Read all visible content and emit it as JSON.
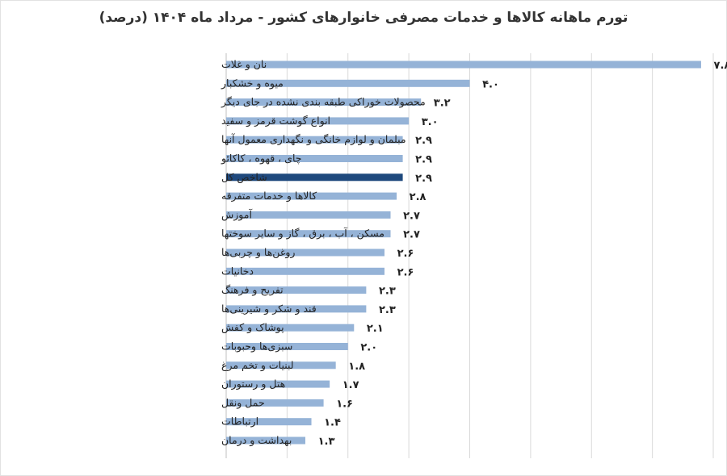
{
  "chart_data": {
    "type": "bar",
    "orientation": "horizontal",
    "title": "تورم ماهانه کالاها و خدمات مصرفی خانوارهای کشور - مرداد ماه ۱۴۰۴ (درصد)",
    "xlabel": "",
    "ylabel": "",
    "xlim": [
      0,
      8
    ],
    "grid": true,
    "legend": "none",
    "colors": {
      "bar": "#95b3d7",
      "highlight": "#1f497d",
      "grid": "#d9d9d9",
      "axis": "#bfbfbf"
    },
    "highlight_category": "شاخص کل",
    "categories": [
      "نان و غلات",
      "میوه و خشکبار",
      "محصولات خوراکی طبقه بندی نشده در جای دیگر",
      "انواع گوشت قرمز و سفید",
      "مبلمان و لوازم خانگی و نگهداری معمول آنها",
      "چای ، قهوه ، کاکائو",
      "شاخص کل",
      "کالاها و خدمات متفرقه",
      "آموزش",
      "مسکن ، آب ، برق ، گاز و سایر سوختها",
      "روغن‌ها و چربی‌ها",
      "دخانیات",
      "تفریح و فرهنگ",
      "قند و شکر و شیرینی‌ها",
      "پوشاک و کفش",
      "سبزی‌ها وحبوبات",
      "لبنیات و تخم مرغ",
      "هتل و رستوران",
      "حمل ونقل",
      "ارتباطات",
      "بهداشت و درمان"
    ],
    "values": [
      7.8,
      4.0,
      3.2,
      3.0,
      2.9,
      2.9,
      2.9,
      2.8,
      2.7,
      2.7,
      2.6,
      2.6,
      2.3,
      2.3,
      2.1,
      2.0,
      1.8,
      1.7,
      1.6,
      1.4,
      1.3
    ],
    "value_labels": [
      "۷.۸",
      "۴.۰",
      "۳.۲",
      "۳.۰",
      "۲.۹",
      "۲.۹",
      "۲.۹",
      "۲.۸",
      "۲.۷",
      "۲.۷",
      "۲.۶",
      "۲.۶",
      "۲.۳",
      "۲.۳",
      "۲.۱",
      "۲.۰",
      "۱.۸",
      "۱.۷",
      "۱.۶",
      "۱.۴",
      "۱.۳"
    ]
  }
}
